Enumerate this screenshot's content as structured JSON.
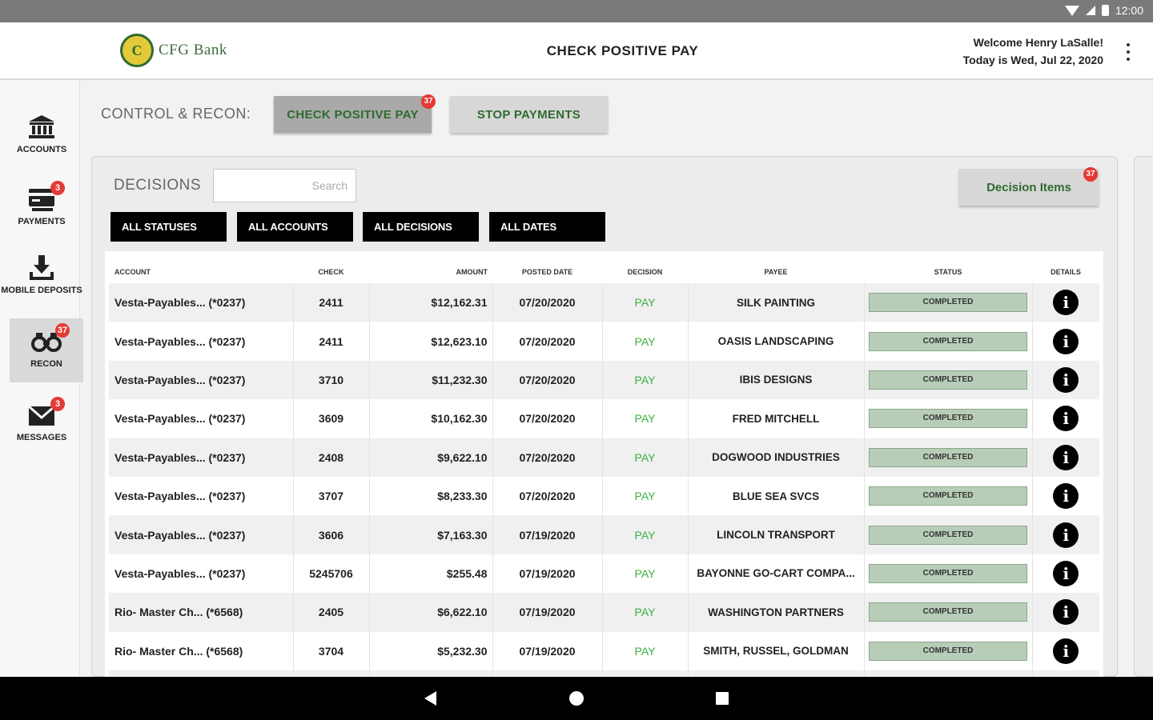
{
  "status_bar": {
    "time": "12:00"
  },
  "header": {
    "logo_mark": "C",
    "logo_text": "CFG Bank",
    "title": "CHECK POSITIVE PAY",
    "welcome": "Welcome Henry LaSalle!",
    "date": "Today is Wed, Jul 22, 2020"
  },
  "sidebar": {
    "items": [
      {
        "label": "ACCOUNTS",
        "icon": "bank-icon",
        "badge": ""
      },
      {
        "label": "PAYMENTS",
        "icon": "payments-icon",
        "badge": "3"
      },
      {
        "label": "MOBILE DEPOSITS",
        "icon": "download-icon",
        "badge": ""
      },
      {
        "label": "RECON",
        "icon": "binoculars-icon",
        "badge": "37"
      },
      {
        "label": "MESSAGES",
        "icon": "envelope-icon",
        "badge": "3"
      }
    ]
  },
  "control": {
    "label": "CONTROL & RECON:",
    "check_positive_pay": "CHECK POSITIVE PAY",
    "check_positive_pay_badge": "37",
    "stop_payments": "STOP PAYMENTS"
  },
  "decisions": {
    "label": "DECISIONS",
    "search_placeholder": "Search",
    "decision_items_label": "Decision Items",
    "decision_items_badge": "37",
    "filters": [
      "ALL STATUSES",
      "ALL ACCOUNTS",
      "ALL DECISIONS",
      "ALL DATES"
    ]
  },
  "table": {
    "columns": [
      "ACCOUNT",
      "CHECK",
      "AMOUNT",
      "POSTED DATE",
      "DECISION",
      "PAYEE",
      "STATUS",
      "DETAILS"
    ],
    "rows": [
      {
        "account": "Vesta-Payables... (*0237)",
        "check": "2411",
        "amount": "$12,162.31",
        "posted": "07/20/2020",
        "decision": "PAY",
        "payee": "SILK PAINTING",
        "status": "COMPLETED"
      },
      {
        "account": "Vesta-Payables... (*0237)",
        "check": "2411",
        "amount": "$12,623.10",
        "posted": "07/20/2020",
        "decision": "PAY",
        "payee": "OASIS LANDSCAPING",
        "status": "COMPLETED"
      },
      {
        "account": "Vesta-Payables... (*0237)",
        "check": "3710",
        "amount": "$11,232.30",
        "posted": "07/20/2020",
        "decision": "PAY",
        "payee": "IBIS DESIGNS",
        "status": "COMPLETED"
      },
      {
        "account": "Vesta-Payables... (*0237)",
        "check": "3609",
        "amount": "$10,162.30",
        "posted": "07/20/2020",
        "decision": "PAY",
        "payee": "FRED MITCHELL",
        "status": "COMPLETED"
      },
      {
        "account": "Vesta-Payables... (*0237)",
        "check": "2408",
        "amount": "$9,622.10",
        "posted": "07/20/2020",
        "decision": "PAY",
        "payee": "DOGWOOD INDUSTRIES",
        "status": "COMPLETED"
      },
      {
        "account": "Vesta-Payables... (*0237)",
        "check": "3707",
        "amount": "$8,233.30",
        "posted": "07/20/2020",
        "decision": "PAY",
        "payee": "BLUE SEA SVCS",
        "status": "COMPLETED"
      },
      {
        "account": "Vesta-Payables... (*0237)",
        "check": "3606",
        "amount": "$7,163.30",
        "posted": "07/19/2020",
        "decision": "PAY",
        "payee": "LINCOLN TRANSPORT",
        "status": "COMPLETED"
      },
      {
        "account": "Vesta-Payables... (*0237)",
        "check": "5245706",
        "amount": "$255.48",
        "posted": "07/19/2020",
        "decision": "PAY",
        "payee": "BAYONNE GO-CART COMPA...",
        "status": "COMPLETED"
      },
      {
        "account": "Rio- Master Ch... (*6568)",
        "check": "2405",
        "amount": "$6,622.10",
        "posted": "07/19/2020",
        "decision": "PAY",
        "payee": "WASHINGTON PARTNERS",
        "status": "COMPLETED"
      },
      {
        "account": "Rio- Master Ch... (*6568)",
        "check": "3704",
        "amount": "$5,232.30",
        "posted": "07/19/2020",
        "decision": "PAY",
        "payee": "SMITH, RUSSEL, GOLDMAN",
        "status": "COMPLETED"
      },
      {
        "account": "",
        "check": "",
        "amount": "",
        "posted": "",
        "decision": "",
        "payee": "",
        "status": ""
      }
    ]
  },
  "colors": {
    "brand_green": "#2f6b2f",
    "pay_green": "#3cb043",
    "badge_red": "#e53935",
    "status_pill": "#b8cdb8"
  }
}
